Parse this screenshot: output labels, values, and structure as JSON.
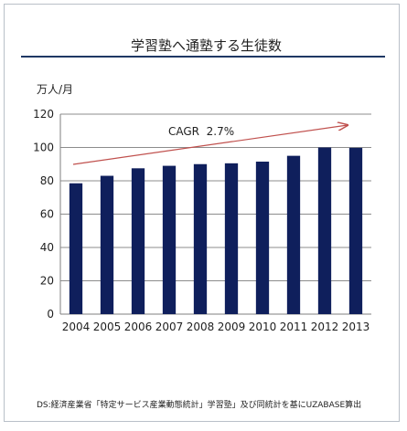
{
  "chart_data": {
    "type": "bar",
    "title": "学習塾へ通塾する生徒数",
    "unit_label": "万人/月",
    "categories": [
      "2004",
      "2005",
      "2006",
      "2007",
      "2008",
      "2009",
      "2010",
      "2011",
      "2012",
      "2013"
    ],
    "values": [
      78.5,
      83,
      87.5,
      89,
      90,
      90.5,
      91.5,
      95,
      100,
      99.8
    ],
    "ylim": [
      0,
      120
    ],
    "yticks": [
      "0",
      "20",
      "40",
      "60",
      "80",
      "100",
      "120"
    ],
    "annotation": "CAGR  2.7%",
    "bar_color": "#0f1f5c",
    "trend_color": "#c0504d",
    "grid": true
  },
  "source": "DS:経済産業省「特定サービス産業動態統計」学習塾」及び同統計を基にUZABASE算出"
}
